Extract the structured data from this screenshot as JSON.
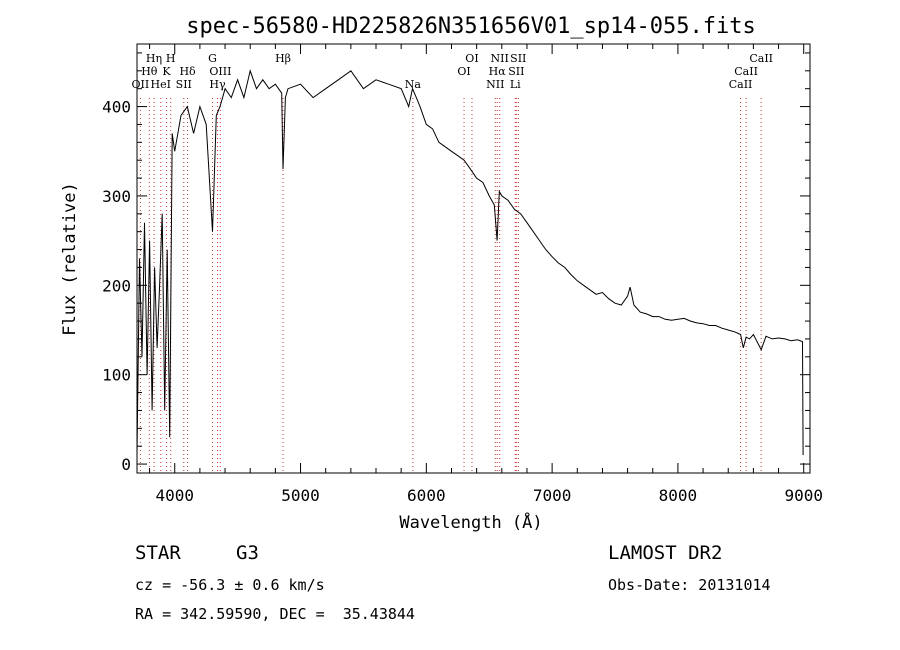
{
  "chart_data": {
    "type": "line",
    "title": "spec-56580-HD225826N351656V01_sp14-055.fits",
    "xlabel": "Wavelength (Å)",
    "ylabel": "Flux (relative)",
    "xlim": [
      3700,
      9050
    ],
    "ylim": [
      -10,
      470
    ],
    "xticks": [
      "4000",
      "5000",
      "6000",
      "7000",
      "8000",
      "9000"
    ],
    "yticks": [
      "0",
      "100",
      "200",
      "300",
      "400"
    ],
    "series": [
      {
        "x": [
          3700,
          3720,
          3740,
          3760,
          3780,
          3800,
          3820,
          3840,
          3860,
          3880,
          3900,
          3920,
          3940,
          3960,
          3980,
          4000,
          4050,
          4100,
          4150,
          4200,
          4250,
          4300,
          4330,
          4360,
          4400,
          4450,
          4500,
          4550,
          4600,
          4650,
          4700,
          4750,
          4800,
          4850,
          4861,
          4880,
          4900,
          5000,
          5100,
          5200,
          5300,
          5400,
          5500,
          5600,
          5700,
          5800,
          5860,
          5890,
          5920,
          5950,
          6000,
          6050,
          6100,
          6150,
          6200,
          6250,
          6300,
          6350,
          6400,
          6450,
          6500,
          6540,
          6563,
          6580,
          6600,
          6650,
          6700,
          6750,
          6800,
          6850,
          6900,
          6950,
          7000,
          7050,
          7100,
          7150,
          7200,
          7250,
          7300,
          7350,
          7400,
          7450,
          7500,
          7550,
          7600,
          7620,
          7650,
          7700,
          7750,
          7800,
          7850,
          7900,
          7950,
          8000,
          8050,
          8100,
          8150,
          8200,
          8250,
          8300,
          8350,
          8400,
          8450,
          8498,
          8520,
          8542,
          8570,
          8600,
          8662,
          8700,
          8750,
          8800,
          8850,
          8900,
          8950,
          8990,
          8995
        ],
        "y": [
          10,
          230,
          120,
          270,
          100,
          250,
          60,
          220,
          130,
          200,
          280,
          60,
          240,
          30,
          370,
          350,
          390,
          400,
          370,
          400,
          380,
          260,
          390,
          400,
          420,
          410,
          430,
          410,
          440,
          420,
          430,
          420,
          425,
          415,
          330,
          410,
          420,
          425,
          410,
          420,
          430,
          440,
          420,
          430,
          425,
          420,
          400,
          420,
          410,
          400,
          380,
          375,
          360,
          355,
          350,
          345,
          340,
          330,
          320,
          315,
          300,
          290,
          250,
          305,
          300,
          295,
          285,
          280,
          270,
          260,
          250,
          240,
          232,
          225,
          220,
          212,
          205,
          200,
          195,
          190,
          192,
          185,
          180,
          178,
          188,
          198,
          178,
          170,
          168,
          165,
          165,
          162,
          161,
          162,
          163,
          160,
          158,
          157,
          155,
          155,
          152,
          150,
          148,
          145,
          130,
          142,
          140,
          145,
          128,
          143,
          140,
          141,
          140,
          138,
          139,
          137,
          10
        ]
      }
    ],
    "lines": [
      {
        "name": "OII",
        "wave": 3727,
        "row": 3
      },
      {
        "name": "Hθ",
        "wave": 3798,
        "row": 2
      },
      {
        "name": "Hη",
        "wave": 3835,
        "row": 1
      },
      {
        "name": "HeI",
        "wave": 3889,
        "row": 3
      },
      {
        "name": "K",
        "wave": 3934,
        "row": 2
      },
      {
        "name": "H",
        "wave": 3968,
        "row": 1
      },
      {
        "name": "SII",
        "wave": 4072,
        "row": 3
      },
      {
        "name": "Hδ",
        "wave": 4102,
        "row": 2
      },
      {
        "name": "G",
        "wave": 4300,
        "row": 1
      },
      {
        "name": "Hγ",
        "wave": 4340,
        "row": 3
      },
      {
        "name": "OIII",
        "wave": 4363,
        "row": 2
      },
      {
        "name": "Hβ",
        "wave": 4861,
        "row": 1
      },
      {
        "name": "Na",
        "wave": 5893,
        "row": 3
      },
      {
        "name": "OI",
        "wave": 6300,
        "row": 2
      },
      {
        "name": "OI",
        "wave": 6363,
        "row": 1
      },
      {
        "name": "NII",
        "wave": 6548,
        "row": 3
      },
      {
        "name": "NII",
        "wave": 6583,
        "row": 1
      },
      {
        "name": "Hα",
        "wave": 6563,
        "row": 2
      },
      {
        "name": "Li",
        "wave": 6707,
        "row": 3
      },
      {
        "name": "SII",
        "wave": 6716,
        "row": 2
      },
      {
        "name": "SII",
        "wave": 6731,
        "row": 1
      },
      {
        "name": "CaII",
        "wave": 8498,
        "row": 3
      },
      {
        "name": "CaII",
        "wave": 8542,
        "row": 2
      },
      {
        "name": "CaII",
        "wave": 8662,
        "row": 1
      }
    ],
    "grid": false,
    "colors": {
      "spectrum": "#000000",
      "line_markers": "#cc3333",
      "axes": "#000000"
    }
  },
  "info": {
    "class_label": "STAR",
    "subclass": "G3",
    "redshift": "cz = -56.3 ± 0.6 km/s",
    "coords": "RA = 342.59590, DEC =  35.43844",
    "survey": "LAMOST DR2",
    "obs_date": "Obs-Date: 20131014"
  }
}
